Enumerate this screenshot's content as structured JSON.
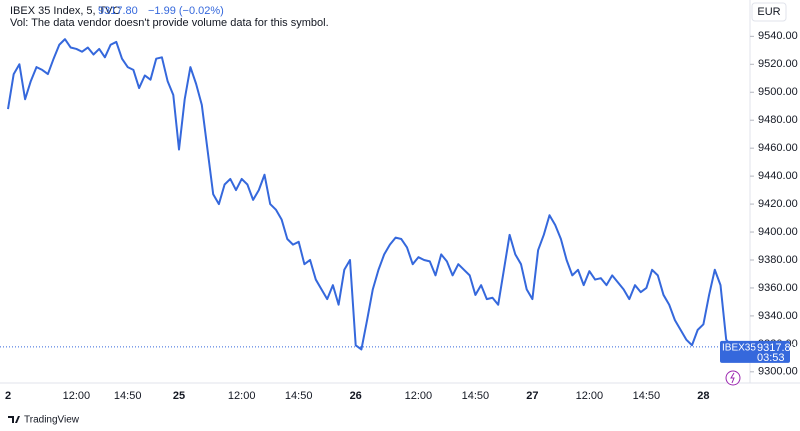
{
  "chart_data": {
    "type": "line",
    "categories": [
      "2",
      null,
      null,
      null,
      null,
      null,
      null,
      null,
      null,
      null,
      null,
      null,
      "12:00",
      null,
      null,
      null,
      null,
      null,
      null,
      null,
      null,
      "14:50",
      null,
      null,
      null,
      null,
      null,
      null,
      null,
      null,
      "25",
      null,
      null,
      null,
      null,
      null,
      null,
      null,
      null,
      null,
      null,
      "12:00",
      null,
      null,
      null,
      null,
      null,
      null,
      null,
      null,
      null,
      "14:50",
      null,
      null,
      null,
      null,
      null,
      null,
      null,
      null,
      null,
      "26",
      null,
      null,
      null,
      null,
      null,
      null,
      null,
      null,
      null,
      null,
      "12:00",
      null,
      null,
      null,
      null,
      null,
      null,
      null,
      null,
      null,
      "14:50",
      null,
      null,
      null,
      null,
      null,
      null,
      null,
      null,
      null,
      "27",
      null,
      null,
      null,
      null,
      null,
      null,
      null,
      null,
      null,
      "12:00",
      null,
      null,
      null,
      null,
      null,
      null,
      null,
      null,
      null,
      "14:50",
      null,
      null,
      null,
      null,
      null,
      null,
      null,
      null,
      null,
      "28",
      null,
      null,
      null,
      null,
      null
    ],
    "series": [
      {
        "name": "IBEX35",
        "color": "#3568dc",
        "values": [
          9488,
          9513,
          9520,
          9495,
          9508,
          9518,
          9516,
          9513,
          9524,
          9534,
          9538,
          9532,
          9531,
          9529,
          9532,
          9527,
          9531,
          9525,
          9534,
          9536,
          9524,
          9518,
          9516,
          9503,
          9512,
          9509,
          9524,
          9525,
          9508,
          9498,
          9459,
          9495,
          9518,
          9506,
          9491,
          9459,
          9427,
          9420,
          9434,
          9438,
          9430,
          9438,
          9434,
          9423,
          9430,
          9441,
          9420,
          9416,
          9409,
          9395,
          9391,
          9393,
          9377,
          9380,
          9366,
          9359,
          9352,
          9362,
          9348,
          9373,
          9380,
          9319,
          9316,
          9337,
          9359,
          9373,
          9384,
          9391,
          9396,
          9395,
          9389,
          9377,
          9382,
          9380,
          9379,
          9369,
          9384,
          9379,
          9369,
          9377,
          9373,
          9369,
          9355,
          9362,
          9352,
          9353,
          9348,
          9373,
          9398,
          9384,
          9377,
          9359,
          9352,
          9387,
          9398,
          9412,
          9405,
          9395,
          9380,
          9369,
          9373,
          9362,
          9372,
          9366,
          9367,
          9362,
          9369,
          9364,
          9359,
          9352,
          9362,
          9357,
          9360,
          9373,
          9369,
          9355,
          9348,
          9337,
          9330,
          9323,
          9319,
          9330,
          9334,
          9355,
          9373,
          9362,
          9323,
          9317.8
        ]
      }
    ],
    "ylim": [
      9292,
      9566
    ],
    "yticks": [
      {
        "value": 9300,
        "label": "9300.00"
      },
      {
        "value": 9320,
        "label": "9320.00"
      },
      {
        "value": 9340,
        "label": "9340.00"
      },
      {
        "value": 9360,
        "label": "9360.00"
      },
      {
        "value": 9380,
        "label": "9380.00"
      },
      {
        "value": 9400,
        "label": "9400.00"
      },
      {
        "value": 9420,
        "label": "9420.00"
      },
      {
        "value": 9440,
        "label": "9440.00"
      },
      {
        "value": 9460,
        "label": "9460.00"
      },
      {
        "value": 9480,
        "label": "9480.00"
      },
      {
        "value": 9500,
        "label": "9500.00"
      },
      {
        "value": 9520,
        "label": "9520.00"
      },
      {
        "value": 9540,
        "label": "9540.00"
      }
    ],
    "grid": false
  },
  "header": {
    "symbol": "IBEX 35 Index, 5, TVC",
    "last": "9317.80",
    "change": "−1.99 (−0.02%)"
  },
  "volume_note": "Vol: The data vendor doesn't provide volume data for this symbol.",
  "currency": "EUR",
  "price_tag": {
    "symbol": "IBEX35",
    "price": "9317.80",
    "countdown": "03:53"
  },
  "brand": "TradingView"
}
